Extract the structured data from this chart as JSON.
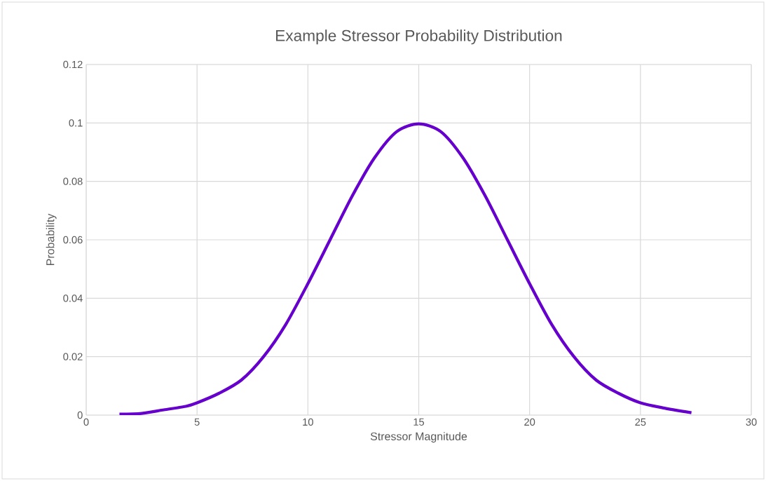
{
  "chart_data": {
    "type": "line",
    "title": "Example Stressor Probability Distribution",
    "xlabel": "Stressor Magnitude",
    "ylabel": "Probability",
    "xlim": [
      0,
      30
    ],
    "xticks": [
      0,
      5,
      10,
      15,
      20,
      25,
      30
    ],
    "ylim": [
      0,
      0.12
    ],
    "yticks": [
      0,
      0.02,
      0.04,
      0.06,
      0.08,
      0.1,
      0.12
    ],
    "grid": true,
    "legend": false,
    "marker": "none",
    "line_style": "solid",
    "series": [
      {
        "color": "#6600cc",
        "x": [
          1.5,
          2.5,
          3.5,
          4.5,
          5,
          6,
          7,
          8,
          9,
          10,
          11,
          12,
          13,
          14,
          15,
          16,
          17,
          18,
          19,
          20,
          21,
          22,
          23,
          24,
          25,
          26,
          27.3
        ],
        "values": [
          0.0003,
          0.0006,
          0.0018,
          0.003,
          0.0042,
          0.0075,
          0.012,
          0.02,
          0.031,
          0.045,
          0.06,
          0.075,
          0.088,
          0.097,
          0.0997,
          0.097,
          0.088,
          0.075,
          0.06,
          0.045,
          0.031,
          0.02,
          0.012,
          0.0075,
          0.0042,
          0.0025,
          0.0008
        ]
      }
    ]
  }
}
